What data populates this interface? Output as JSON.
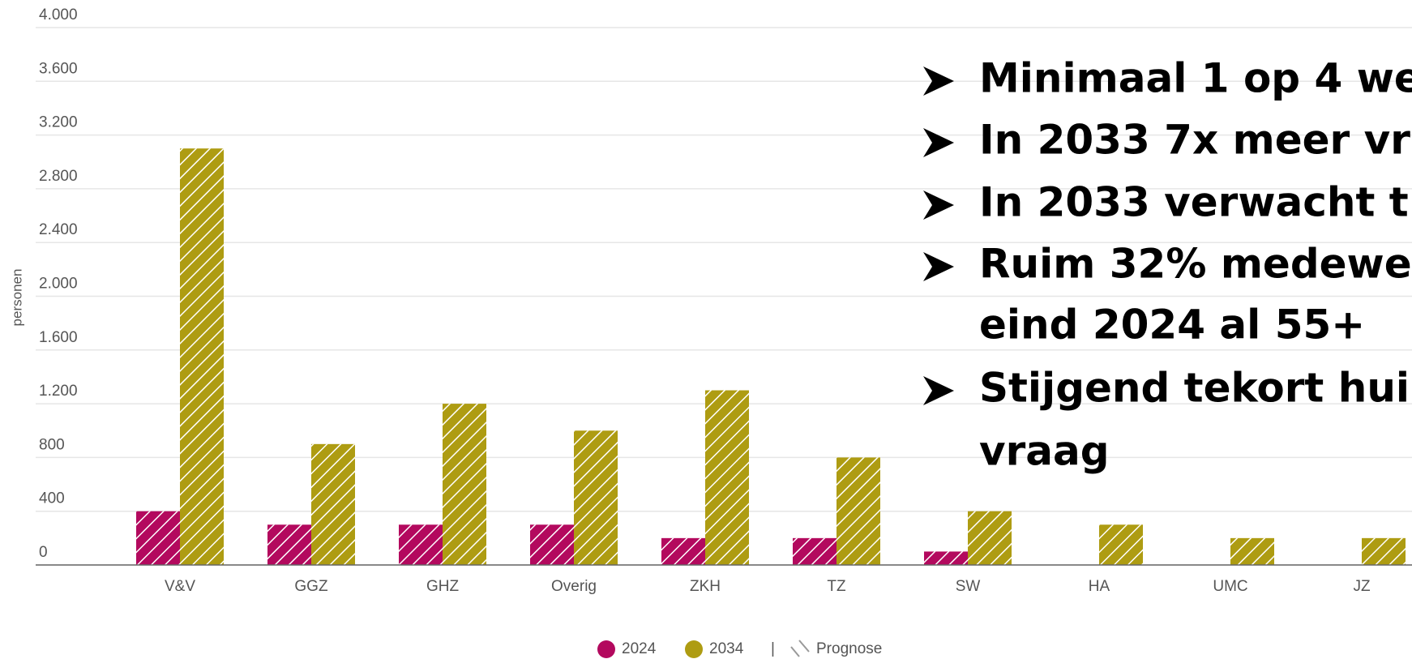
{
  "chart_data": {
    "type": "bar",
    "y_label": "personen",
    "categories": [
      "V&V",
      "GGZ",
      "GHZ",
      "Overig",
      "ZKH",
      "TZ",
      "SW",
      "HA",
      "UMC",
      "JZ"
    ],
    "series": [
      {
        "name": "2024",
        "color": "#b3095e",
        "values": [
          400,
          300,
          300,
          300,
          200,
          200,
          100,
          0,
          0,
          0
        ]
      },
      {
        "name": "2034",
        "color": "#ae9c12",
        "values": [
          3100,
          900,
          1200,
          1000,
          1300,
          800,
          400,
          300,
          200,
          200
        ]
      }
    ],
    "ylim": [
      0,
      4000
    ],
    "yticks": [
      {
        "value": 0,
        "label": "0"
      },
      {
        "value": 400,
        "label": "400"
      },
      {
        "value": 800,
        "label": "800"
      },
      {
        "value": 1200,
        "label": "1.200"
      },
      {
        "value": 1600,
        "label": "1.600"
      },
      {
        "value": 2000,
        "label": "2.000"
      },
      {
        "value": 2400,
        "label": "2.400"
      },
      {
        "value": 2800,
        "label": "2.800"
      },
      {
        "value": 3200,
        "label": "3.200"
      },
      {
        "value": 3600,
        "label": "3.600"
      },
      {
        "value": 4000,
        "label": "4.000"
      }
    ],
    "grid": true,
    "legend_separator": "|",
    "legend_hatch_label": "Prognose",
    "annotations": [
      [
        "Minimaal 1 op 4 we"
      ],
      [
        "In 2033 7x meer vr"
      ],
      [
        "In 2033 verwacht t"
      ],
      [
        "Ruim 32% medewe",
        "eind 2024 al 55+"
      ],
      [
        "Stijgend tekort hui",
        "vraag"
      ]
    ]
  }
}
